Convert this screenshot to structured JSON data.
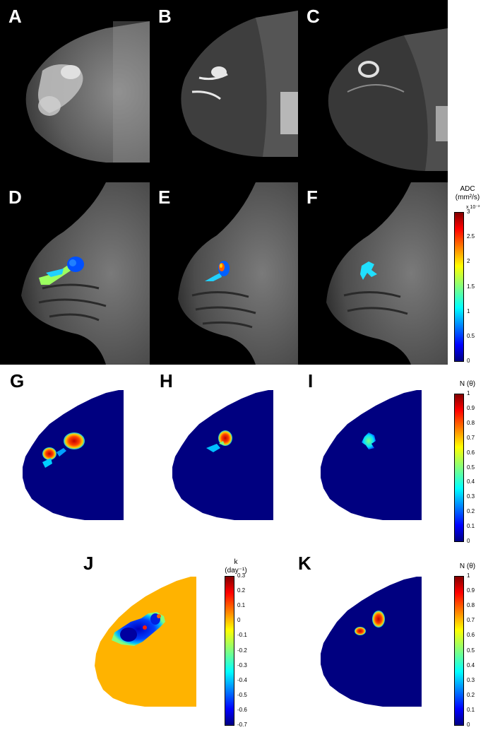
{
  "panels": {
    "a": "A",
    "b": "B",
    "c": "C",
    "d": "D",
    "e": "E",
    "f": "F",
    "g": "G",
    "h": "H",
    "i": "I",
    "j": "J",
    "k": "K"
  },
  "colorbars": {
    "adc": {
      "title_line1": "ADC",
      "title_line2": "(mm²/s)",
      "multiplier": "x 10⁻³",
      "ticks": [
        "3",
        "2.5",
        "2",
        "1.5",
        "1",
        "0.5",
        "0"
      ]
    },
    "n_ghi": {
      "title": "N (θ)",
      "ticks": [
        "1",
        "0.9",
        "0.8",
        "0.7",
        "0.6",
        "0.5",
        "0.4",
        "0.3",
        "0.2",
        "0.1",
        "0"
      ]
    },
    "k": {
      "title_line1": "k",
      "title_line2": "(day⁻¹)",
      "ticks": [
        "0.3",
        "0.2",
        "0.1",
        "0",
        "-0.1",
        "-0.2",
        "-0.3",
        "-0.4",
        "-0.5",
        "-0.6",
        "-0.7"
      ]
    },
    "n_k": {
      "title": "N (θ)",
      "ticks": [
        "1",
        "0.9",
        "0.8",
        "0.7",
        "0.6",
        "0.5",
        "0.4",
        "0.3",
        "0.2",
        "0.1",
        "0"
      ]
    }
  },
  "colors": {
    "jet_dark_blue": "#000080",
    "jet_blue": "#0000ff",
    "jet_cyan": "#00ffff",
    "jet_yellow": "#ffff00",
    "jet_red": "#ff0000",
    "jet_dark_red": "#800000",
    "k_background": "#ffb300"
  }
}
